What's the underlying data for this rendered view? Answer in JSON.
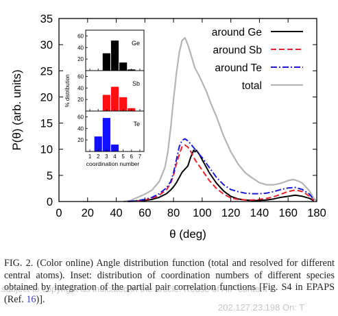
{
  "chart_data": [
    {
      "type": "line",
      "xlabel": "θ (deg)",
      "ylabel": "P(θ) (arb. units)",
      "xlim": [
        0,
        180
      ],
      "ylim": [
        0,
        35
      ],
      "xticks": [
        0,
        20,
        40,
        60,
        80,
        100,
        120,
        140,
        160,
        180
      ],
      "yticks": [
        0,
        5,
        10,
        15,
        20,
        25,
        30,
        35
      ],
      "legend_position": "top-right",
      "series": [
        {
          "name": "around Ge",
          "color": "#000000",
          "style": "solid",
          "x": [
            48,
            55,
            60,
            65,
            70,
            75,
            78,
            80,
            82,
            84,
            86,
            88,
            90,
            92,
            94,
            95,
            96,
            98,
            100,
            102,
            105,
            110,
            115,
            120,
            125,
            130,
            135,
            140,
            145,
            150,
            155,
            160,
            165,
            170,
            175,
            178
          ],
          "y": [
            0,
            0.1,
            0.2,
            0.4,
            0.8,
            1.5,
            2.2,
            2.8,
            3.6,
            4.6,
            5.6,
            6.2,
            6.8,
            8.5,
            9.8,
            9.5,
            9.8,
            9.0,
            8.0,
            7.0,
            5.5,
            3.5,
            2.0,
            1.0,
            0.5,
            0.3,
            0.2,
            0.2,
            0.3,
            0.5,
            0.8,
            1.0,
            1.2,
            1.0,
            0.6,
            0.1
          ]
        },
        {
          "name": "around Sb",
          "color": "#e8202a",
          "style": "dashed",
          "x": [
            48,
            55,
            60,
            65,
            70,
            75,
            78,
            80,
            82,
            84,
            86,
            88,
            90,
            92,
            95,
            100,
            105,
            110,
            115,
            120,
            125,
            130,
            135,
            140,
            145,
            150,
            155,
            160,
            165,
            170,
            175,
            178
          ],
          "y": [
            0,
            0.1,
            0.3,
            0.6,
            1.2,
            2.2,
            3.5,
            5.0,
            7.2,
            9.0,
            10.5,
            10.8,
            10.4,
            9.6,
            8.0,
            6.0,
            4.0,
            2.5,
            1.4,
            0.7,
            0.4,
            0.3,
            0.3,
            0.4,
            0.6,
            0.9,
            1.4,
            1.9,
            2.2,
            1.9,
            1.0,
            0.2
          ]
        },
        {
          "name": "around Te",
          "color": "#1a1ad8",
          "style": "dashdot",
          "x": [
            48,
            55,
            60,
            65,
            70,
            75,
            78,
            80,
            82,
            84,
            86,
            88,
            90,
            92,
            95,
            100,
            105,
            110,
            115,
            120,
            125,
            130,
            135,
            140,
            145,
            150,
            155,
            160,
            165,
            170,
            175,
            178
          ],
          "y": [
            0,
            0.2,
            0.4,
            0.8,
            1.5,
            2.6,
            3.8,
            5.5,
            8.0,
            10.5,
            11.7,
            12.0,
            11.6,
            11.0,
            10.0,
            8.4,
            6.5,
            4.6,
            3.2,
            2.3,
            1.9,
            1.6,
            1.5,
            1.5,
            1.6,
            1.9,
            2.3,
            2.6,
            2.7,
            2.3,
            1.4,
            0.3
          ]
        },
        {
          "name": "total",
          "color": "#b4b4b4",
          "style": "solid",
          "x": [
            45,
            50,
            55,
            60,
            65,
            70,
            74,
            76,
            78,
            80,
            82,
            84,
            86,
            88,
            90,
            92,
            95,
            98,
            100,
            103,
            106,
            110,
            115,
            120,
            125,
            130,
            135,
            140,
            145,
            150,
            155,
            160,
            163,
            165,
            168,
            170,
            175,
            178,
            180
          ],
          "y": [
            0,
            0.2,
            0.8,
            1.4,
            2.2,
            3.8,
            6.5,
            9.5,
            14.0,
            19.5,
            24.5,
            28.5,
            30.8,
            31.3,
            30.0,
            28.2,
            25.5,
            24.0,
            22.8,
            21.0,
            18.8,
            16.2,
            12.5,
            9.5,
            7.2,
            5.5,
            4.5,
            3.6,
            3.2,
            3.2,
            3.5,
            4.0,
            4.2,
            4.1,
            3.8,
            3.5,
            2.0,
            0.6,
            0.1
          ]
        }
      ]
    },
    {
      "type": "bar",
      "xlabel": "coordination number",
      "ylabel": "% distribution",
      "categories": [
        1,
        2,
        3,
        4,
        5,
        6,
        7
      ],
      "ylim": [
        0,
        70
      ],
      "yticks": [
        0,
        20,
        40,
        60
      ],
      "panels": [
        {
          "name": "Ge",
          "color": "#000000",
          "values": [
            0,
            0,
            30,
            52,
            14,
            2,
            0
          ]
        },
        {
          "name": "Sb",
          "color": "#ff1010",
          "values": [
            0,
            0,
            28,
            42,
            24,
            5,
            0
          ]
        },
        {
          "name": "Te",
          "color": "#1010ff",
          "values": [
            0,
            26,
            58,
            12,
            0,
            0,
            0
          ]
        }
      ]
    }
  ],
  "caption": {
    "fig_label": "FIG. 2.",
    "text_before_ref": "(Color online) Angle distribution function (total and resolved for different central atoms). Inset: distribution of coordination numbers of different species obtained by integration of the partial pair correlation functions [Fig. S4 in EPAPS (Ref. ",
    "ref_number": "16",
    "text_after_ref": ")]."
  },
  "watermarks": {
    "line1": "subject to copyright as indicated in the article. Reuse of AIP content is",
    "line2": "202.127.23.198 On: T"
  }
}
